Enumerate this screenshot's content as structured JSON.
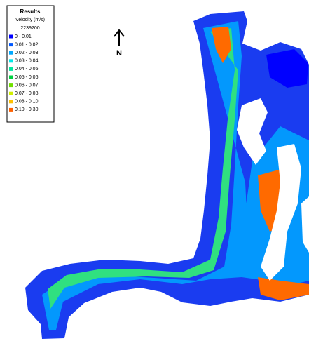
{
  "legend": {
    "title": "Results",
    "subtitle": "Velocity (m/s)",
    "timestamp": "2239200",
    "items": [
      {
        "label": "0 - 0.01",
        "color": "#0000ff"
      },
      {
        "label": "0.01 - 0.02",
        "color": "#0058ff"
      },
      {
        "label": "0.02 - 0.03",
        "color": "#00a8ff"
      },
      {
        "label": "0.03 - 0.04",
        "color": "#00e8e8"
      },
      {
        "label": "0.04 - 0.05",
        "color": "#00e8a0"
      },
      {
        "label": "0.05 - 0.06",
        "color": "#00d040"
      },
      {
        "label": "0.06 - 0.07",
        "color": "#70e000"
      },
      {
        "label": "0.07 - 0.08",
        "color": "#d0f000"
      },
      {
        "label": "0.08 - 0.10",
        "color": "#ffc000"
      },
      {
        "label": "0.10 - 0.30",
        "color": "#ff6000"
      }
    ]
  },
  "north_label": "N"
}
